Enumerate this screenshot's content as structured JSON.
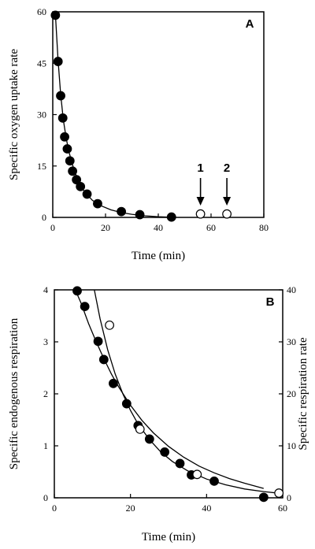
{
  "chart_data": [
    {
      "panel_label": "A",
      "type": "scatter",
      "xlabel": "Time  (min)",
      "ylabel": "Specific oxygen uptake rate",
      "xlim": [
        0,
        80
      ],
      "ylim": [
        0,
        60
      ],
      "xticks": [
        "0",
        "20",
        "40",
        "60",
        "80"
      ],
      "yticks": [
        "0",
        "15",
        "30",
        "45",
        "60"
      ],
      "series": [
        {
          "marker": "filled-circle",
          "x": [
            1,
            2,
            3,
            3.8,
            4.5,
            5.5,
            6.5,
            7.5,
            9,
            10.5,
            13,
            17,
            26,
            33,
            45
          ],
          "y": [
            59,
            45.5,
            35.5,
            29,
            23.5,
            20,
            16.5,
            13.5,
            11,
            9,
            6.8,
            4,
            1.7,
            0.8,
            0.1
          ]
        },
        {
          "marker": "open-circle",
          "x": [
            56,
            66
          ],
          "y": [
            1,
            1
          ]
        }
      ],
      "fit_curve": {
        "x": [
          1,
          2,
          3,
          4,
          5,
          6,
          8,
          10,
          12,
          15,
          18,
          22,
          26,
          30,
          35,
          40,
          45
        ],
        "y": [
          59.5,
          46,
          36,
          28.5,
          23.5,
          19.5,
          14,
          10,
          7.5,
          5,
          3.5,
          2.2,
          1.4,
          0.9,
          0.45,
          0.2,
          0.05
        ]
      },
      "arrows": [
        {
          "label": "1",
          "x": 56
        },
        {
          "label": "2",
          "x": 66
        }
      ]
    },
    {
      "panel_label": "B",
      "type": "scatter",
      "xlabel": "Time  (min)",
      "ylabel": "Specific endogenous respiration",
      "ylabel_right": "Specific respiration rate",
      "xlim": [
        0,
        60
      ],
      "ylim": [
        0,
        4
      ],
      "ylim_right": [
        0,
        40
      ],
      "xticks": [
        "0",
        "20",
        "40",
        "60"
      ],
      "yticks": [
        "0",
        "1",
        "2",
        "3",
        "4"
      ],
      "yticks_right": [
        "0",
        "10",
        "20",
        "30",
        "40"
      ],
      "series": [
        {
          "marker": "filled-circle",
          "axis": "left",
          "x": [
            6,
            8,
            11.5,
            13,
            15.5,
            19,
            22,
            25,
            29,
            33,
            36,
            42,
            55
          ],
          "y": [
            3.98,
            3.68,
            3.01,
            2.66,
            2.2,
            1.81,
            1.39,
            1.13,
            0.88,
            0.66,
            0.44,
            0.32,
            0.01
          ]
        },
        {
          "marker": "open-circle",
          "axis": "left",
          "x": [
            14.5,
            22.5,
            37.5,
            59
          ],
          "y": [
            3.32,
            1.32,
            0.45,
            0.09
          ]
        }
      ],
      "fit_curve_left": {
        "x": [
          5.5,
          7,
          9,
          11,
          13,
          15,
          17,
          20,
          23,
          26,
          30,
          34,
          38,
          42,
          46,
          50,
          55
        ],
        "y": [
          4.0,
          3.75,
          3.35,
          3.0,
          2.68,
          2.38,
          2.12,
          1.78,
          1.49,
          1.25,
          0.99,
          0.78,
          0.61,
          0.48,
          0.37,
          0.28,
          0.18
        ]
      },
      "fit_curve_right": {
        "x": [
          10.5,
          12,
          14,
          16,
          18,
          20,
          22,
          25,
          28,
          31,
          35,
          40,
          45,
          50,
          55,
          60
        ],
        "y": [
          40,
          34.5,
          28.5,
          23.8,
          20,
          16.8,
          14.2,
          11.2,
          8.8,
          7.0,
          5.2,
          3.6,
          2.5,
          1.7,
          1.2,
          0.8
        ]
      }
    }
  ]
}
